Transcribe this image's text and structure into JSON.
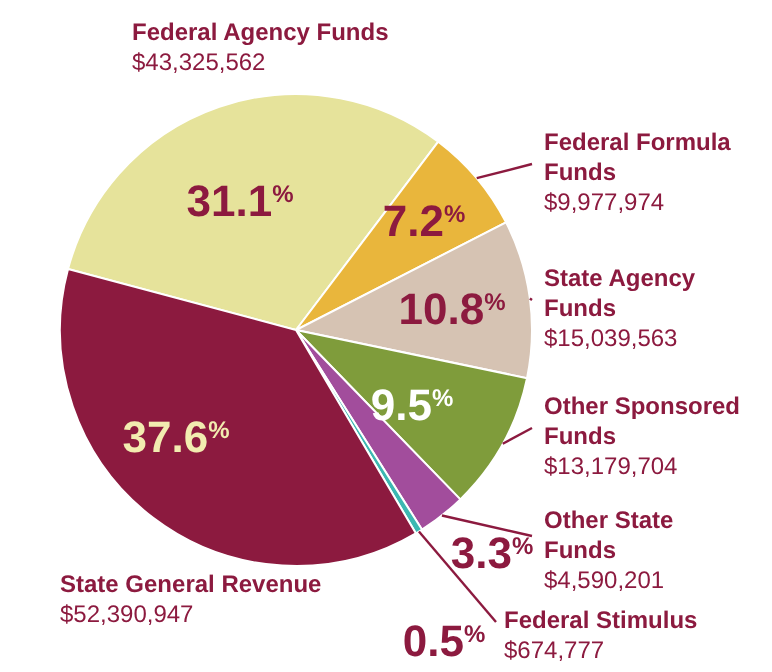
{
  "chart_data": {
    "type": "pie",
    "categories": [
      "Federal Agency Funds",
      "Federal Formula Funds",
      "State Agency Funds",
      "Other Sponsored Funds",
      "Other State Funds",
      "Federal Stimulus",
      "State General Revenue"
    ],
    "values": [
      43325562,
      9977974,
      15039563,
      13179704,
      4590201,
      674777,
      52390947
    ],
    "value_labels": [
      "$43,325,562",
      "$9,977,974",
      "$15,039,563",
      "$13,179,704",
      "$4,590,201",
      "$674,777",
      "$52,390,947"
    ],
    "colors": [
      "#e6e39b",
      "#e9b63c",
      "#d6c3b3",
      "#7f9c3b",
      "#a24d9c",
      "#3cb8b2",
      "#8c1a3f"
    ],
    "annotations": [
      {
        "text": "31.1$^{%}$",
        "x": "Federal Agency Funds"
      },
      {
        "text": "7.2$^{%}$",
        "x": "Federal Formula Funds"
      },
      {
        "text": "10.8$^{%}$",
        "x": "State Agency Funds"
      },
      {
        "text": "9.5$^{%}$",
        "x": "Other Sponsored Funds"
      },
      {
        "text": "3.3$^{%}$",
        "x": "Other State Funds"
      },
      {
        "text": "0.5$^{%}$",
        "x": "Federal Stimulus"
      },
      {
        "text": "37.6$^{%}$",
        "x": "State General Revenue"
      }
    ],
    "legend": false
  }
}
